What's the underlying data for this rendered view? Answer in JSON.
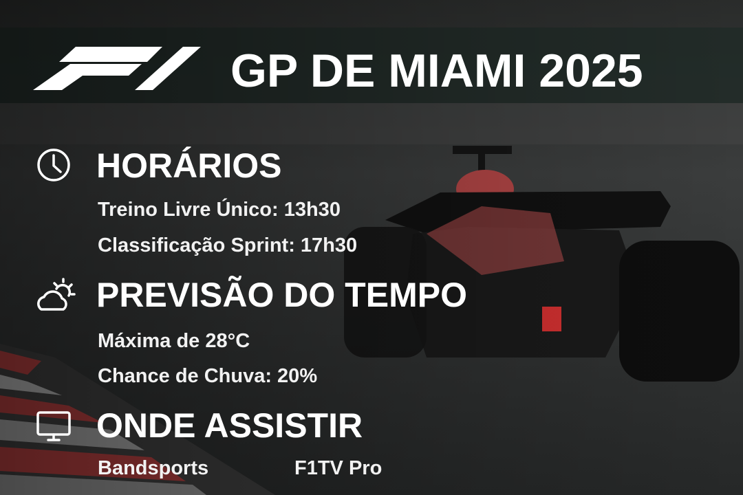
{
  "header": {
    "title": "GP DE MIAMI 2025"
  },
  "sections": [
    {
      "title": "HORÁRIOS",
      "lines": [
        "Treino Livre Único: 13h30",
        "Classificação Sprint: 17h30"
      ]
    },
    {
      "title": "PREVISÃO DO TEMPO",
      "lines": [
        "Máxima de 28°C",
        "Chance de Chuva: 20%"
      ]
    },
    {
      "title": "ONDE ASSISTIR",
      "lines": [
        "Bandsports",
        "F1TV Pro"
      ]
    }
  ]
}
